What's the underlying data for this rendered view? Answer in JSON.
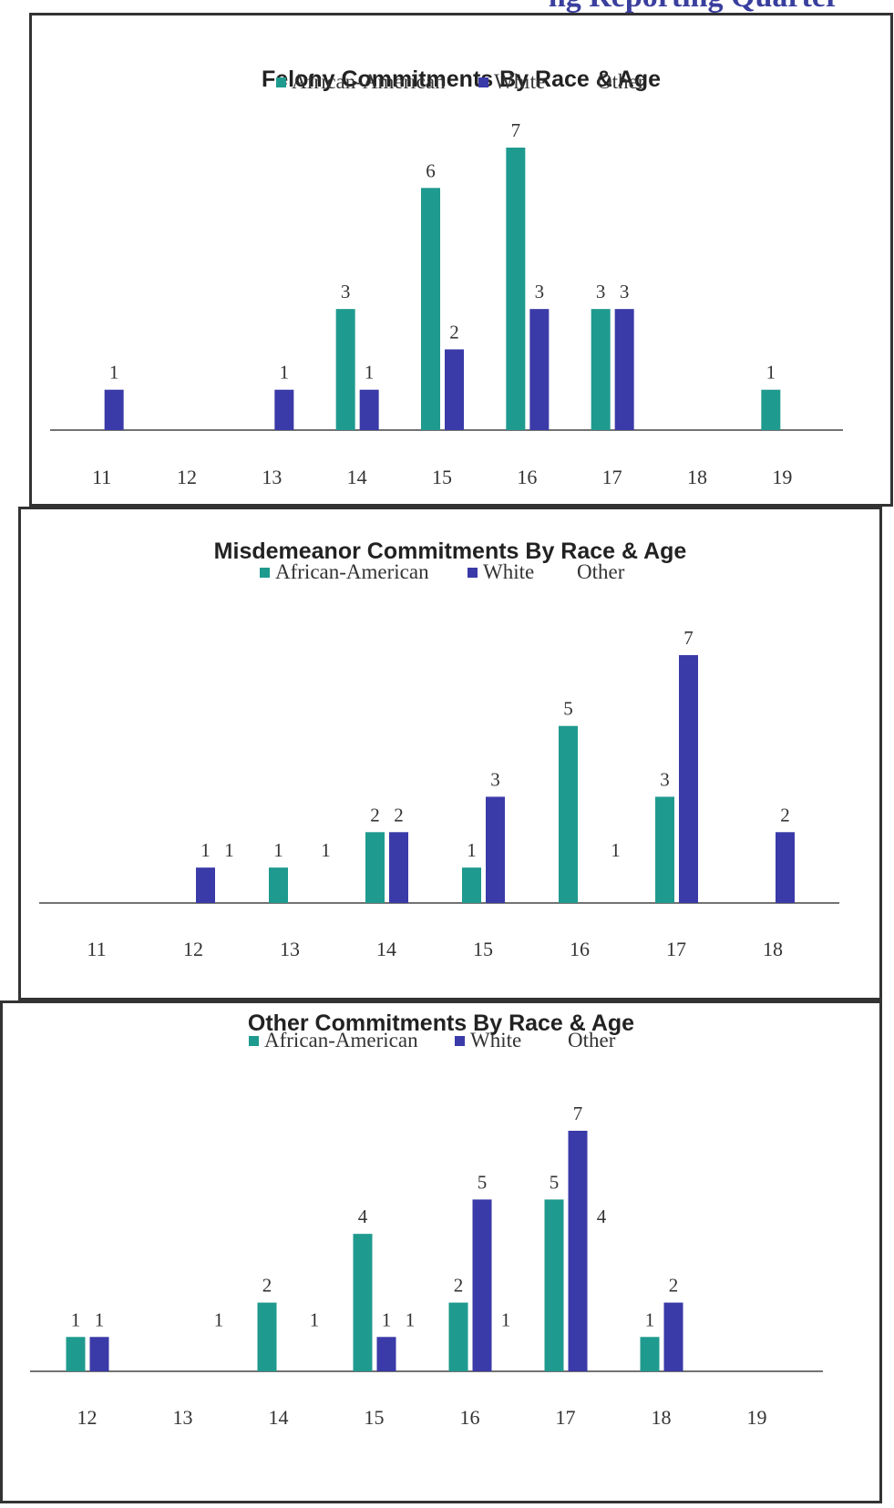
{
  "header_fragment": "ng Reporting Quarter",
  "colors": {
    "african_american": "#1f9a8e",
    "white": "#3a3aa8",
    "axis": "#444444"
  },
  "legend": {
    "aa": "African-American",
    "white": "White",
    "other": "Other"
  },
  "chart_data": [
    {
      "type": "bar",
      "title": "Felony Commitments By Race & Age",
      "categories": [
        "11",
        "12",
        "13",
        "14",
        "15",
        "16",
        "17",
        "18",
        "19"
      ],
      "series": [
        {
          "name": "African-American",
          "values": [
            0,
            0,
            0,
            3,
            6,
            7,
            3,
            0,
            1
          ]
        },
        {
          "name": "White",
          "values": [
            1,
            0,
            1,
            1,
            2,
            3,
            3,
            0,
            0
          ]
        },
        {
          "name": "Other",
          "values": [
            0,
            0,
            0,
            0,
            0,
            0,
            0,
            0,
            0
          ]
        }
      ],
      "ylim": [
        0,
        7
      ]
    },
    {
      "type": "bar",
      "title": "Misdemeanor Commitments By Race & Age",
      "categories": [
        "11",
        "12",
        "13",
        "14",
        "15",
        "16",
        "17",
        "18"
      ],
      "series": [
        {
          "name": "African-American",
          "values": [
            0,
            0,
            1,
            2,
            1,
            5,
            3,
            0
          ]
        },
        {
          "name": "White",
          "values": [
            0,
            1,
            0,
            2,
            3,
            0,
            7,
            2
          ]
        },
        {
          "name": "Other",
          "values": [
            0,
            1,
            1,
            0,
            0,
            1,
            0,
            0
          ]
        }
      ],
      "ylim": [
        0,
        7
      ]
    },
    {
      "type": "bar",
      "title": "Other Commitments By Race & Age",
      "categories": [
        "12",
        "13",
        "14",
        "15",
        "16",
        "17",
        "18",
        "19"
      ],
      "series": [
        {
          "name": "African-American",
          "values": [
            1,
            0,
            2,
            4,
            2,
            5,
            1,
            0
          ]
        },
        {
          "name": "White",
          "values": [
            1,
            0,
            0,
            1,
            5,
            7,
            2,
            0
          ]
        },
        {
          "name": "Other",
          "values": [
            0,
            1,
            1,
            1,
            1,
            4,
            0,
            0
          ]
        }
      ],
      "ylim": [
        0,
        7
      ]
    }
  ]
}
